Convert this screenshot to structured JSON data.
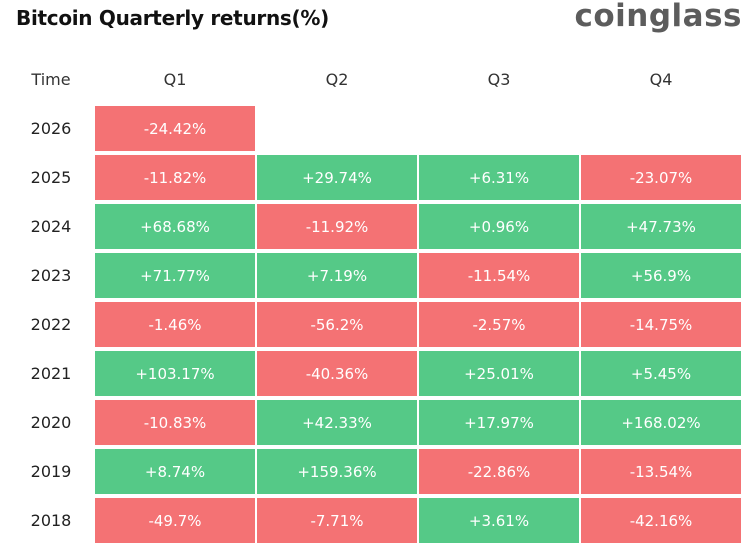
{
  "header": {
    "title": "Bitcoin Quarterly returns(%)",
    "brand": "coinglass"
  },
  "colors": {
    "positive": "#55c987",
    "negative": "#f47274"
  },
  "chart_data": {
    "type": "table",
    "row_header": "Time",
    "columns": [
      "Q1",
      "Q2",
      "Q3",
      "Q4"
    ],
    "rows": [
      {
        "year": "2026",
        "values": [
          "-24.42%",
          null,
          null,
          null
        ]
      },
      {
        "year": "2025",
        "values": [
          "-11.82%",
          "+29.74%",
          "+6.31%",
          "-23.07%"
        ]
      },
      {
        "year": "2024",
        "values": [
          "+68.68%",
          "-11.92%",
          "+0.96%",
          "+47.73%"
        ]
      },
      {
        "year": "2023",
        "values": [
          "+71.77%",
          "+7.19%",
          "-11.54%",
          "+56.9%"
        ]
      },
      {
        "year": "2022",
        "values": [
          "-1.46%",
          "-56.2%",
          "-2.57%",
          "-14.75%"
        ]
      },
      {
        "year": "2021",
        "values": [
          "+103.17%",
          "-40.36%",
          "+25.01%",
          "+5.45%"
        ]
      },
      {
        "year": "2020",
        "values": [
          "-10.83%",
          "+42.33%",
          "+17.97%",
          "+168.02%"
        ]
      },
      {
        "year": "2019",
        "values": [
          "+8.74%",
          "+159.36%",
          "-22.86%",
          "-13.54%"
        ]
      },
      {
        "year": "2018",
        "values": [
          "-49.7%",
          "-7.71%",
          "+3.61%",
          "-42.16%"
        ]
      }
    ]
  }
}
